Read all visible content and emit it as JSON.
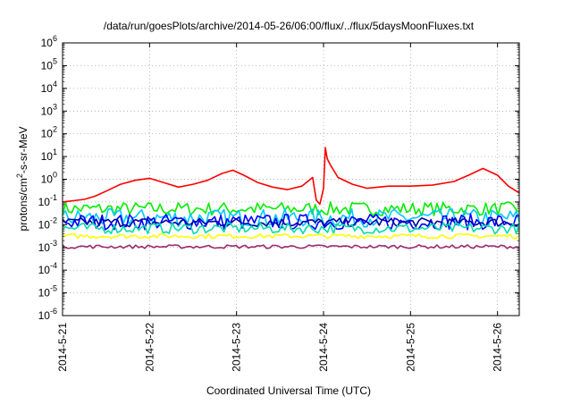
{
  "chart_data": {
    "type": "line",
    "title": "/data/run/goesPlots/archive/2014-05-26/06:00/flux/../flux/5daysMoonFluxes.txt",
    "xlabel": "Coordinated Universal Time (UTC)",
    "ylabel_parts": [
      "protons/cm",
      "2",
      "-s-sr-MeV"
    ],
    "y_scale": "log",
    "ylim_exp": [
      -6,
      6
    ],
    "xlim": [
      "2014-05-21T00:00",
      "2014-05-26T06:00"
    ],
    "x_ticks": [
      "2014-5-21",
      "2014-5-22",
      "2014-5-23",
      "2014-5-24",
      "2014-5-25",
      "2014-5-26"
    ],
    "y_ticks_exp": [
      -6,
      -5,
      -4,
      -3,
      -2,
      -1,
      0,
      1,
      2,
      3,
      4,
      5,
      6
    ],
    "y_tick_base": "10",
    "grid": true,
    "series": [
      {
        "color": "#ff0000",
        "points": [
          [
            "2014-05-21T00:00",
            0.1
          ],
          [
            "2014-05-21T06:00",
            0.13
          ],
          [
            "2014-05-21T09:00",
            0.18
          ],
          [
            "2014-05-21T12:00",
            0.3
          ],
          [
            "2014-05-21T16:00",
            0.6
          ],
          [
            "2014-05-21T20:00",
            0.9
          ],
          [
            "2014-05-22T00:00",
            1.1
          ],
          [
            "2014-05-22T04:00",
            0.7
          ],
          [
            "2014-05-22T08:00",
            0.45
          ],
          [
            "2014-05-22T12:00",
            0.6
          ],
          [
            "2014-05-22T16:00",
            0.9
          ],
          [
            "2014-05-22T20:00",
            1.8
          ],
          [
            "2014-05-22T23:00",
            2.5
          ],
          [
            "2014-05-23T02:00",
            1.5
          ],
          [
            "2014-05-23T06:00",
            0.7
          ],
          [
            "2014-05-23T10:00",
            0.45
          ],
          [
            "2014-05-23T14:00",
            0.35
          ],
          [
            "2014-05-23T18:00",
            0.5
          ],
          [
            "2014-05-23T21:00",
            1.2
          ],
          [
            "2014-05-23T22:00",
            0.12
          ],
          [
            "2014-05-23T23:00",
            0.08
          ],
          [
            "2014-05-24T00:00",
            0.4
          ],
          [
            "2014-05-24T00:30",
            25
          ],
          [
            "2014-05-24T01:00",
            8
          ],
          [
            "2014-05-24T02:00",
            4
          ],
          [
            "2014-05-24T04:00",
            1.2
          ],
          [
            "2014-05-24T08:00",
            0.6
          ],
          [
            "2014-05-24T12:00",
            0.4
          ],
          [
            "2014-05-24T18:00",
            0.5
          ],
          [
            "2014-05-25T00:00",
            0.5
          ],
          [
            "2014-05-25T06:00",
            0.55
          ],
          [
            "2014-05-25T12:00",
            0.8
          ],
          [
            "2014-05-25T16:00",
            1.5
          ],
          [
            "2014-05-25T20:00",
            3.0
          ],
          [
            "2014-05-26T00:00",
            1.5
          ],
          [
            "2014-05-26T03:00",
            0.5
          ],
          [
            "2014-05-26T06:00",
            0.25
          ]
        ]
      },
      {
        "color": "#00ee00",
        "band": [
          0.025,
          0.1
        ]
      },
      {
        "color": "#00c8ff",
        "band": [
          0.008,
          0.05
        ]
      },
      {
        "color": "#0000ff",
        "band": [
          0.006,
          0.03
        ]
      },
      {
        "color": "#0000aa",
        "band": [
          0.008,
          0.02
        ]
      },
      {
        "color": "#00ddaa",
        "band": [
          0.004,
          0.012
        ]
      },
      {
        "color": "#ffff00",
        "band": [
          0.0025,
          0.004
        ]
      },
      {
        "color": "#9c2a6e",
        "band": [
          0.0009,
          0.0013
        ]
      }
    ]
  }
}
